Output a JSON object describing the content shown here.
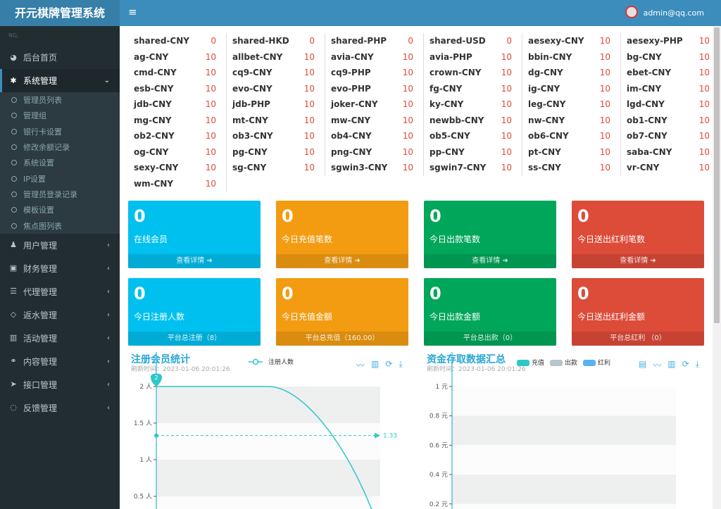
{
  "app": {
    "title": "开元棋牌管理系统",
    "user": "admin@qq.com",
    "menu_icon": "hamburger-icon"
  },
  "sidebar": {
    "hint": "NG.",
    "items": [
      {
        "label": "后台首页",
        "icon": "dashboard-icon"
      },
      {
        "label": "系统管理",
        "icon": "gear-icon",
        "expanded": true,
        "children": [
          "管理员列表",
          "管理组",
          "银行卡设置",
          "修改余额记录",
          "系统设置",
          "IP设置",
          "管理员登录记录",
          "模板设置",
          "焦点图列表"
        ]
      },
      {
        "label": "用户管理",
        "icon": "users-icon"
      },
      {
        "label": "财务管理",
        "icon": "money-icon"
      },
      {
        "label": "代理管理",
        "icon": "list-icon"
      },
      {
        "label": "返水管理",
        "icon": "code-icon"
      },
      {
        "label": "活动管理",
        "icon": "map-icon"
      },
      {
        "label": "内容管理",
        "icon": "link-icon"
      },
      {
        "label": "接口管理",
        "icon": "send-icon"
      },
      {
        "label": "反馈管理",
        "icon": "comment-icon"
      }
    ]
  },
  "currencies": [
    [
      "shared-CNY",
      "0"
    ],
    [
      "shared-HKD",
      "0"
    ],
    [
      "shared-PHP",
      "0"
    ],
    [
      "shared-USD",
      "0"
    ],
    [
      "aesexy-CNY",
      "10"
    ],
    [
      "aesexy-PHP",
      "10"
    ],
    [
      "ag-CNY",
      "10"
    ],
    [
      "allbet-CNY",
      "10"
    ],
    [
      "avia-CNY",
      "10"
    ],
    [
      "avia-PHP",
      "10"
    ],
    [
      "bbin-CNY",
      "10"
    ],
    [
      "bg-CNY",
      "10"
    ],
    [
      "cmd-CNY",
      "10"
    ],
    [
      "cq9-CNY",
      "10"
    ],
    [
      "cq9-PHP",
      "10"
    ],
    [
      "crown-CNY",
      "10"
    ],
    [
      "dg-CNY",
      "10"
    ],
    [
      "ebet-CNY",
      "10"
    ],
    [
      "esb-CNY",
      "10"
    ],
    [
      "evo-CNY",
      "10"
    ],
    [
      "evo-PHP",
      "10"
    ],
    [
      "fg-CNY",
      "10"
    ],
    [
      "ig-CNY",
      "10"
    ],
    [
      "im-CNY",
      "10"
    ],
    [
      "jdb-CNY",
      "10"
    ],
    [
      "jdb-PHP",
      "10"
    ],
    [
      "joker-CNY",
      "10"
    ],
    [
      "ky-CNY",
      "10"
    ],
    [
      "leg-CNY",
      "10"
    ],
    [
      "lgd-CNY",
      "10"
    ],
    [
      "mg-CNY",
      "10"
    ],
    [
      "mt-CNY",
      "10"
    ],
    [
      "mw-CNY",
      "10"
    ],
    [
      "newbb-CNY",
      "10"
    ],
    [
      "nw-CNY",
      "10"
    ],
    [
      "ob1-CNY",
      "10"
    ],
    [
      "ob2-CNY",
      "10"
    ],
    [
      "ob3-CNY",
      "10"
    ],
    [
      "ob4-CNY",
      "10"
    ],
    [
      "ob5-CNY",
      "10"
    ],
    [
      "ob6-CNY",
      "10"
    ],
    [
      "ob7-CNY",
      "10"
    ],
    [
      "og-CNY",
      "10"
    ],
    [
      "pg-CNY",
      "10"
    ],
    [
      "png-CNY",
      "10"
    ],
    [
      "pp-CNY",
      "10"
    ],
    [
      "pt-CNY",
      "10"
    ],
    [
      "saba-CNY",
      "10"
    ],
    [
      "sexy-CNY",
      "10"
    ],
    [
      "sg-CNY",
      "10"
    ],
    [
      "sgwin3-CNY",
      "10"
    ],
    [
      "sgwin7-CNY",
      "10"
    ],
    [
      "ss-CNY",
      "10"
    ],
    [
      "vr-CNY",
      "10"
    ],
    [
      "wm-CNY",
      "10"
    ]
  ],
  "stats": [
    {
      "value": "0",
      "label": "在线会员",
      "footer": "查看详情",
      "color": "#00c0ef"
    },
    {
      "value": "0",
      "label": "今日充值笔数",
      "footer": "查看详情",
      "color": "#f39c12"
    },
    {
      "value": "0",
      "label": "今日出款笔数",
      "footer": "查看详情",
      "color": "#00a65a"
    },
    {
      "value": "0",
      "label": "今日送出红利笔数",
      "footer": "查看详情",
      "color": "#dd4b39"
    },
    {
      "value": "0",
      "label": "今日注册人数",
      "footer": "平台总注册（8）",
      "color": "#00c0ef"
    },
    {
      "value": "0",
      "label": "今日充值金额",
      "footer": "平台总充值（160.00）",
      "color": "#f39c12"
    },
    {
      "value": "0",
      "label": "今日出款金额",
      "footer": "平台总出款（0）",
      "color": "#00a65a"
    },
    {
      "value": "0",
      "label": "今日送出红利金额",
      "footer": "平台总红利 （0）",
      "color": "#dd4b39"
    }
  ],
  "chart_data": [
    {
      "type": "line",
      "title": "注册会员统计",
      "subtitle": "刷新时间：2023-01-06 20:01:26",
      "legend": [
        "注册人数"
      ],
      "series": [
        {
          "name": "注册人数",
          "values": [
            2,
            2,
            0
          ]
        }
      ],
      "ylim": [
        0,
        2
      ],
      "yticks": [
        "0.5 人",
        "1 人",
        "1.5 人",
        "2 人"
      ],
      "max_marker": "2",
      "average_line": "1.33",
      "color": "#2ec7c9",
      "toolbox": [
        "line-icon",
        "bar-icon",
        "refresh-icon",
        "download-icon"
      ]
    },
    {
      "type": "bar",
      "title": "资金存取数据汇总",
      "subtitle": "刷新时间：2023-01-06 20:01:26",
      "legend": [
        {
          "name": "充值",
          "color": "#2ec7c9"
        },
        {
          "name": "出款",
          "color": "#b6c4cc"
        },
        {
          "name": "红利",
          "color": "#5ab1ef"
        }
      ],
      "series": [],
      "ylim": [
        0,
        1
      ],
      "yticks": [
        "0.2 元",
        "0.4 元",
        "0.6 元",
        "0.8 元",
        "1 元"
      ],
      "toolbox": [
        "data-view-icon",
        "line-icon",
        "bar-icon",
        "refresh-icon",
        "download-icon"
      ]
    }
  ]
}
